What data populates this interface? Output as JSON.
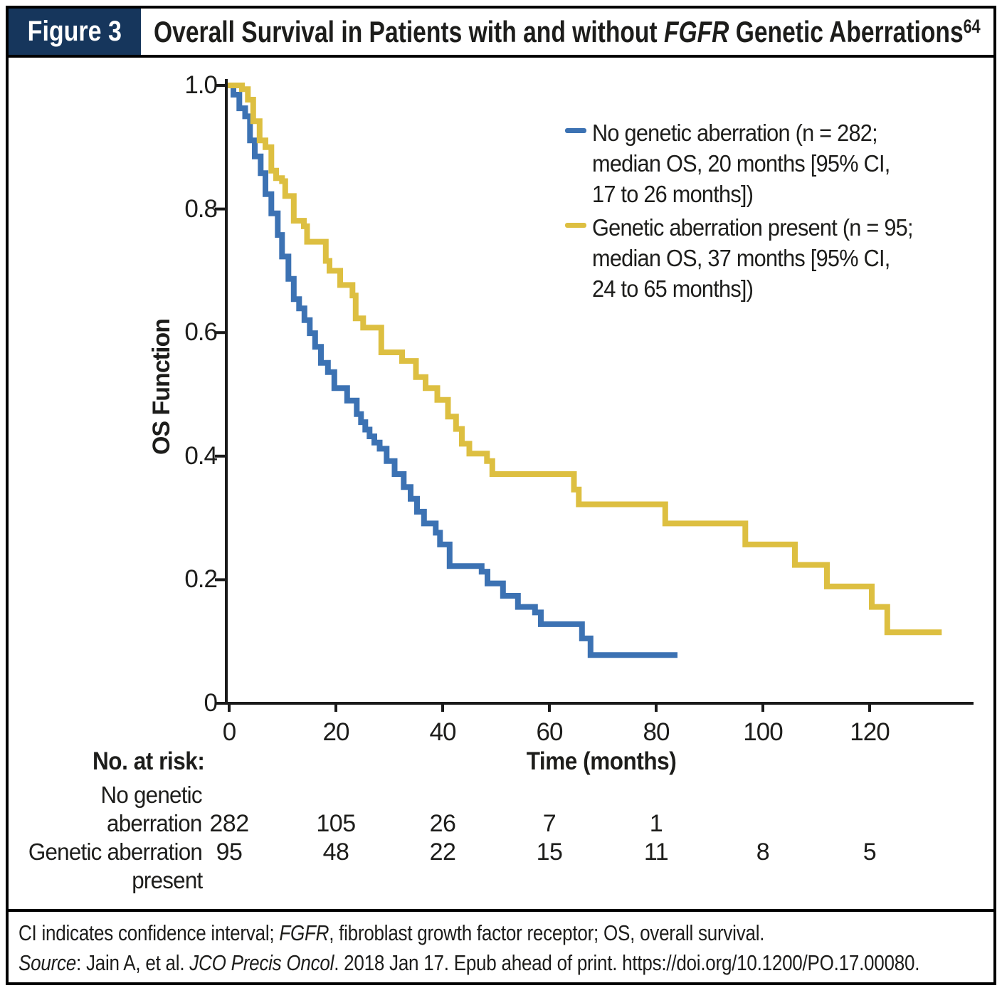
{
  "header": {
    "figure_label": "Figure 3",
    "title_segments": [
      {
        "t": "Overall Survival in Patients with and without "
      },
      {
        "t": "FGFR",
        "i": 1
      },
      {
        "t": " Genetic Aberrations"
      },
      {
        "t": "64",
        "sup": 1
      }
    ]
  },
  "chart_data": {
    "type": "line",
    "subtype": "kaplan-meier-step",
    "title": "Overall Survival in Patients with and without FGFR Genetic Aberrations",
    "xlabel": "Time (months)",
    "ylabel": "OS Function",
    "xlim": [
      0,
      139
    ],
    "ylim": [
      0,
      1.0
    ],
    "grid": false,
    "x_ticks": [
      0,
      20,
      40,
      60,
      80,
      100,
      120
    ],
    "x_tick_labels": [
      "0",
      "20",
      "40",
      "60",
      "80",
      "100",
      "120"
    ],
    "y_ticks": [
      1.0,
      0.8,
      0.6,
      0.4,
      0.2,
      0
    ],
    "y_tick_labels": [
      "1.0",
      "0.8",
      "0.6",
      "0.4",
      "0.2",
      "0"
    ],
    "legend_position": "upper right",
    "series": [
      {
        "name": "No genetic aberration",
        "color": "#3c72b3",
        "n": 282,
        "median_os_months": 20,
        "ci_95_months": "17 to 26",
        "start": [
          0,
          1.0
        ],
        "steps": [
          [
            0.8,
            0.985
          ],
          [
            1.9,
            0.963
          ],
          [
            3.0,
            0.95
          ],
          [
            3.9,
            0.911
          ],
          [
            4.8,
            0.885
          ],
          [
            5.9,
            0.858
          ],
          [
            6.8,
            0.824
          ],
          [
            7.9,
            0.793
          ],
          [
            9.1,
            0.758
          ],
          [
            9.9,
            0.723
          ],
          [
            11.1,
            0.687
          ],
          [
            12.1,
            0.654
          ],
          [
            13.1,
            0.639
          ],
          [
            14.1,
            0.62
          ],
          [
            15.1,
            0.599
          ],
          [
            16.1,
            0.577
          ],
          [
            17.2,
            0.551
          ],
          [
            18.5,
            0.536
          ],
          [
            19.7,
            0.51
          ],
          [
            22.1,
            0.49
          ],
          [
            23.9,
            0.468
          ],
          [
            24.7,
            0.455
          ],
          [
            25.5,
            0.443
          ],
          [
            26.3,
            0.432
          ],
          [
            27.2,
            0.422
          ],
          [
            28.2,
            0.412
          ],
          [
            29.5,
            0.392
          ],
          [
            31.0,
            0.371
          ],
          [
            32.7,
            0.35
          ],
          [
            34.0,
            0.331
          ],
          [
            35.2,
            0.31
          ],
          [
            36.5,
            0.291
          ],
          [
            38.7,
            0.276
          ],
          [
            39.5,
            0.257
          ],
          [
            41.3,
            0.222
          ],
          [
            47.3,
            0.213
          ],
          [
            48.4,
            0.194
          ],
          [
            51.3,
            0.174
          ],
          [
            54.1,
            0.156
          ],
          [
            57.3,
            0.147
          ],
          [
            58.4,
            0.128
          ],
          [
            66.1,
            0.105
          ],
          [
            67.7,
            0.078
          ]
        ],
        "end_time": 84
      },
      {
        "name": "Genetic aberration present",
        "color": "#ddbf41",
        "n": 95,
        "median_os_months": 37,
        "ci_95_months": "24 to 65",
        "start": [
          0,
          1.0
        ],
        "steps": [
          [
            2.4,
            0.994
          ],
          [
            3.5,
            0.977
          ],
          [
            4.5,
            0.942
          ],
          [
            5.7,
            0.911
          ],
          [
            6.8,
            0.9
          ],
          [
            7.9,
            0.862
          ],
          [
            8.8,
            0.85
          ],
          [
            9.9,
            0.845
          ],
          [
            10.5,
            0.821
          ],
          [
            12.1,
            0.781
          ],
          [
            14.0,
            0.772
          ],
          [
            14.6,
            0.747
          ],
          [
            18.1,
            0.716
          ],
          [
            18.8,
            0.7
          ],
          [
            20.8,
            0.677
          ],
          [
            23.1,
            0.66
          ],
          [
            23.7,
            0.623
          ],
          [
            25.1,
            0.608
          ],
          [
            28.5,
            0.568
          ],
          [
            32.4,
            0.554
          ],
          [
            35.0,
            0.528
          ],
          [
            36.8,
            0.51
          ],
          [
            39.0,
            0.491
          ],
          [
            41.0,
            0.464
          ],
          [
            42.5,
            0.444
          ],
          [
            43.6,
            0.42
          ],
          [
            45.0,
            0.404
          ],
          [
            48.3,
            0.392
          ],
          [
            49.3,
            0.371
          ],
          [
            64.6,
            0.346
          ],
          [
            65.5,
            0.322
          ],
          [
            81.7,
            0.291
          ],
          [
            96.7,
            0.257
          ],
          [
            106.0,
            0.224
          ],
          [
            112.0,
            0.189
          ],
          [
            120.4,
            0.156
          ],
          [
            123.3,
            0.115
          ]
        ],
        "end_time": 133.5
      }
    ],
    "legend": {
      "items": [
        {
          "color": "#3c72b3",
          "lines": [
            "No genetic aberration (n = 282;",
            "median OS, 20 months [95% CI,",
            "17 to 26 months])"
          ]
        },
        {
          "color": "#ddbf41",
          "lines": [
            "Genetic aberration present (n = 95;",
            "median OS, 37 months [95% CI,",
            "24 to 65 months])"
          ]
        }
      ]
    }
  },
  "risk_table": {
    "heading": "No. at risk:",
    "rows": [
      {
        "label_lines": [
          "No genetic",
          "aberration"
        ],
        "values": [
          "282",
          "105",
          "26",
          "7",
          "1"
        ]
      },
      {
        "label_lines": [
          "Genetic aberration",
          "present"
        ],
        "values": [
          "95",
          "48",
          "22",
          "15",
          "11",
          "8",
          "5"
        ]
      }
    ]
  },
  "footer": {
    "line1_segments": [
      {
        "t": "CI indicates confidence interval; "
      },
      {
        "t": "FGFR",
        "i": 1
      },
      {
        "t": ", fibroblast growth factor receptor; OS, overall survival."
      }
    ],
    "line2_segments": [
      {
        "t": "Source",
        "i": 1
      },
      {
        "t": ": Jain A, et al. "
      },
      {
        "t": "JCO Precis Oncol",
        "i": 1
      },
      {
        "t": ". 2018 Jan 17. Epub ahead of print. https://doi.org/10.1200/PO.17.00080."
      }
    ]
  },
  "colors": {
    "navy_header": "#16365c",
    "blue_series": "#3c72b3",
    "yellow_series": "#ddbf41",
    "axis": "#1a1a1a"
  }
}
